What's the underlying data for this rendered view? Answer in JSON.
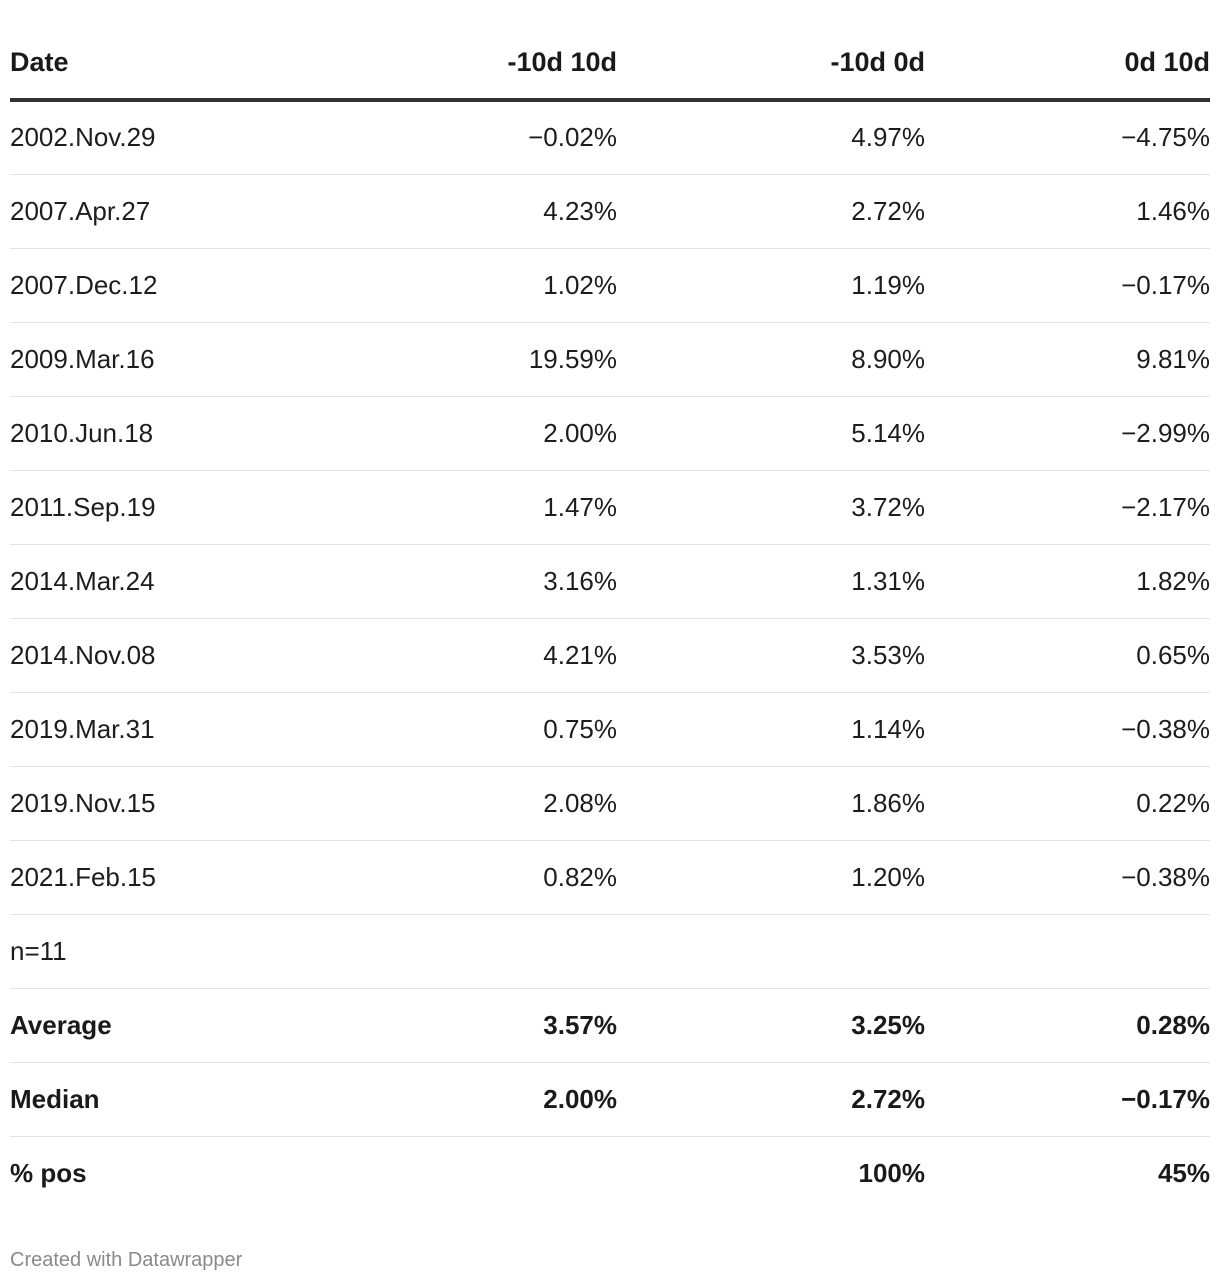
{
  "chart_data": {
    "type": "table",
    "columns": [
      "Date",
      "-10d 10d",
      "-10d 0d",
      "0d 10d"
    ],
    "rows": [
      {
        "date": "2002.Nov.29",
        "a": "−0.02%",
        "b": "4.97%",
        "c": "−4.75%"
      },
      {
        "date": "2007.Apr.27",
        "a": "4.23%",
        "b": "2.72%",
        "c": "1.46%"
      },
      {
        "date": "2007.Dec.12",
        "a": "1.02%",
        "b": "1.19%",
        "c": "−0.17%"
      },
      {
        "date": "2009.Mar.16",
        "a": "19.59%",
        "b": "8.90%",
        "c": "9.81%"
      },
      {
        "date": "2010.Jun.18",
        "a": "2.00%",
        "b": "5.14%",
        "c": "−2.99%"
      },
      {
        "date": "2011.Sep.19",
        "a": "1.47%",
        "b": "3.72%",
        "c": "−2.17%"
      },
      {
        "date": "2014.Mar.24",
        "a": "3.16%",
        "b": "1.31%",
        "c": "1.82%"
      },
      {
        "date": "2014.Nov.08",
        "a": "4.21%",
        "b": "3.53%",
        "c": "0.65%"
      },
      {
        "date": "2019.Mar.31",
        "a": "0.75%",
        "b": "1.14%",
        "c": "−0.38%"
      },
      {
        "date": "2019.Nov.15",
        "a": "2.08%",
        "b": "1.86%",
        "c": "0.22%"
      },
      {
        "date": "2021.Feb.15",
        "a": "0.82%",
        "b": "1.20%",
        "c": "−0.38%"
      }
    ],
    "summary": [
      {
        "label": "n=11",
        "a": "",
        "b": "",
        "c": "",
        "bold": false
      },
      {
        "label": "Average",
        "a": "3.57%",
        "b": "3.25%",
        "c": "0.28%",
        "bold": true
      },
      {
        "label": "Median",
        "a": "2.00%",
        "b": "2.72%",
        "c": "−0.17%",
        "bold": true
      },
      {
        "label": "% pos",
        "a": "",
        "b": "100%",
        "c": "45%",
        "bold": true
      }
    ]
  },
  "footer": {
    "credit": "Created with Datawrapper"
  }
}
